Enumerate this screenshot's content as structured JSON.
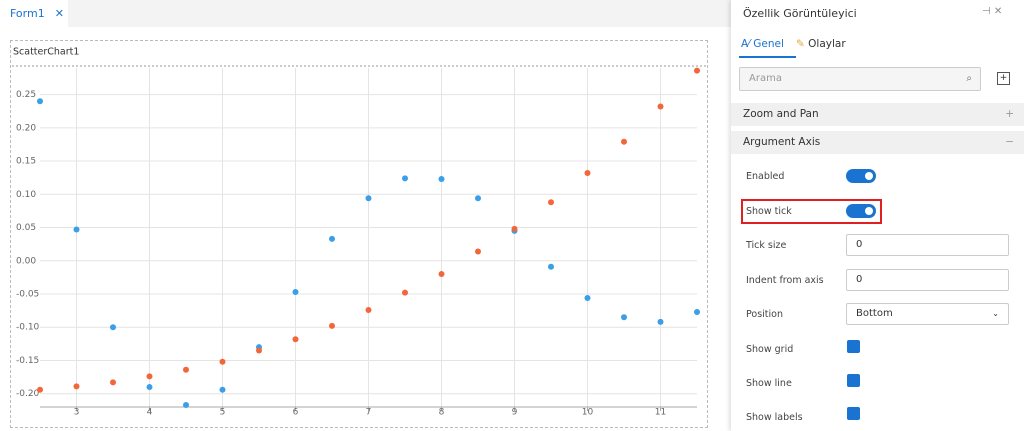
{
  "tab": {
    "title": "Form1"
  },
  "chart_name": "ScatterChart1",
  "chart_data": {
    "type": "scatter",
    "x": [
      2.5,
      3,
      3.5,
      4,
      4.5,
      5,
      5.5,
      6,
      6.5,
      7,
      7.5,
      8,
      8.5,
      9,
      9.5,
      10,
      10.5,
      11,
      11.5
    ],
    "series": [
      {
        "color": "#3a9ee8",
        "values": [
          0.24,
          0.047,
          -0.1,
          -0.19,
          -0.217,
          -0.194,
          -0.13,
          -0.047,
          0.033,
          0.094,
          0.124,
          0.123,
          0.094,
          0.045,
          -0.009,
          -0.056,
          -0.085,
          -0.092,
          -0.077
        ]
      },
      {
        "color": "#f2673a",
        "values": [
          -0.194,
          -0.189,
          -0.183,
          -0.174,
          -0.164,
          -0.152,
          -0.135,
          -0.118,
          -0.098,
          -0.074,
          -0.048,
          -0.02,
          0.014,
          0.048,
          0.088,
          0.132,
          0.179,
          0.232,
          0.286
        ]
      }
    ],
    "xlim": [
      2.5,
      11.5
    ],
    "xticks": [
      3,
      4,
      5,
      6,
      7,
      8,
      9,
      10,
      11
    ],
    "ylim": [
      -0.22,
      0.29
    ],
    "yticks": [
      {
        "value": -0.2,
        "label": "-0.20"
      },
      -0.15,
      {
        "value": -0.1,
        "label": "-0.10"
      },
      -0.05,
      {
        "value": 0,
        "label": "0.00"
      },
      0.05,
      {
        "value": 0.1,
        "label": "0.10"
      },
      0.15,
      {
        "value": 0.2,
        "label": "0.20"
      },
      0.25
    ],
    "grid": true
  },
  "panel": {
    "title": "Özellik Görüntüleyici",
    "tabs": [
      "Genel",
      "Olaylar"
    ],
    "search_placeholder": "Arama",
    "sections": [
      "Zoom and Pan",
      "Argument Axis"
    ],
    "properties": [
      {
        "label": "Enabled"
      },
      {
        "label": "Show tick"
      },
      {
        "label": "Tick size",
        "value": "0"
      },
      {
        "label": "Indent from axis",
        "value": "0"
      },
      {
        "label": "Position",
        "value": "Bottom"
      },
      {
        "label": "Show grid"
      },
      {
        "label": "Show line"
      },
      {
        "label": "Show labels"
      }
    ]
  }
}
